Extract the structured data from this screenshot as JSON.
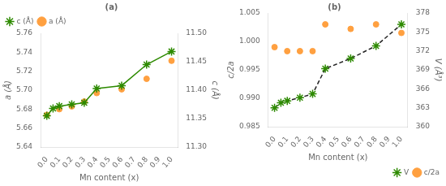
{
  "chart_data": [
    {
      "type": "line",
      "title": "(a)",
      "xlabel": "Mn content (x)",
      "ylabel": "a (Å)",
      "y2label": "c (Å)",
      "legend": "upper left",
      "grid": false,
      "xlim": [
        -0.05,
        1.05
      ],
      "xticks": [
        {
          "value": 0.0,
          "label": "0.0"
        },
        0.1,
        0.2,
        0.3,
        0.4,
        0.5,
        0.6,
        0.7,
        0.8,
        0.9,
        {
          "value": 1.0,
          "label": "1.0"
        }
      ],
      "ylim": [
        5.64,
        5.76
      ],
      "yticks": [
        5.64,
        5.66,
        5.68,
        {
          "value": 5.7,
          "label": "5.70"
        },
        5.72,
        5.74,
        5.76
      ],
      "y2lim": [
        11.3,
        11.5
      ],
      "y2ticks": [
        {
          "value": 11.3,
          "label": "11.30"
        },
        11.35,
        {
          "value": 11.4,
          "label": "11.40"
        },
        11.45,
        {
          "value": 11.5,
          "label": "11.50"
        }
      ],
      "series": [
        {
          "name": "c (Å)",
          "type": "line",
          "axis": "y2",
          "color": "#2d8a00",
          "marker": "star",
          "line_style": "solid",
          "x": [
            0.0,
            0.05,
            0.1,
            0.2,
            0.3,
            0.4,
            0.6,
            0.8,
            1.0
          ],
          "values": [
            11.355,
            11.368,
            11.372,
            11.375,
            11.378,
            11.403,
            11.408,
            11.445,
            11.468
          ]
        },
        {
          "name": "a (Å)",
          "type": "scatter",
          "color": "#FFA040",
          "marker": "circle",
          "x": [
            0.0,
            0.1,
            0.2,
            0.3,
            0.4,
            0.6,
            0.8,
            1.0
          ],
          "values": [
            5.674,
            5.68,
            5.683,
            5.688,
            5.697,
            5.701,
            5.712,
            5.731
          ]
        }
      ]
    },
    {
      "type": "line",
      "title": "(b)",
      "xlabel": "Mn content (x)",
      "ylabel": "c/2a",
      "y2label": "V (Å³)",
      "legend": "lower right",
      "grid": false,
      "xlim": [
        -0.05,
        1.05
      ],
      "xticks": [
        {
          "value": 0.0,
          "label": "0.0"
        },
        0.1,
        0.2,
        0.3,
        0.4,
        0.5,
        0.6,
        0.7,
        0.8,
        0.9,
        {
          "value": 1.0,
          "label": "1.0"
        }
      ],
      "ylim": [
        0.985,
        1.005
      ],
      "yticks": [
        0.985,
        {
          "value": 0.99,
          "label": "0.990"
        },
        0.995,
        {
          "value": 1.0,
          "label": "1.000"
        },
        1.005
      ],
      "y2lim": [
        360,
        378
      ],
      "y2ticks": [
        360,
        363,
        366,
        369,
        372,
        375,
        378
      ],
      "series": [
        {
          "name": "V",
          "type": "line",
          "axis": "y2",
          "color": "#222222",
          "marker": "star",
          "line_style": "dashed",
          "colors": [
            "#2d8a00",
            "#2d8a00",
            "#2d8a00",
            "#2d8a00",
            "#2d8a00",
            "#2d8a00",
            "#2d8a00",
            "#2d8a00",
            "#2d8a00"
          ],
          "x": [
            0.0,
            0.05,
            0.1,
            0.2,
            0.3,
            0.4,
            0.6,
            0.8,
            1.0
          ],
          "values": [
            363.0,
            363.8,
            364.1,
            364.6,
            365.2,
            369.2,
            370.8,
            372.8,
            376.2
          ]
        },
        {
          "name": "c/2a",
          "type": "scatter",
          "color": "#FFA040",
          "marker": "circle",
          "x": [
            0.0,
            0.1,
            0.2,
            0.3,
            0.4,
            0.6,
            0.8,
            1.0
          ],
          "values": [
            0.999,
            0.9983,
            0.9983,
            0.9983,
            1.003,
            1.0022,
            1.003,
            1.0015
          ]
        }
      ]
    }
  ]
}
